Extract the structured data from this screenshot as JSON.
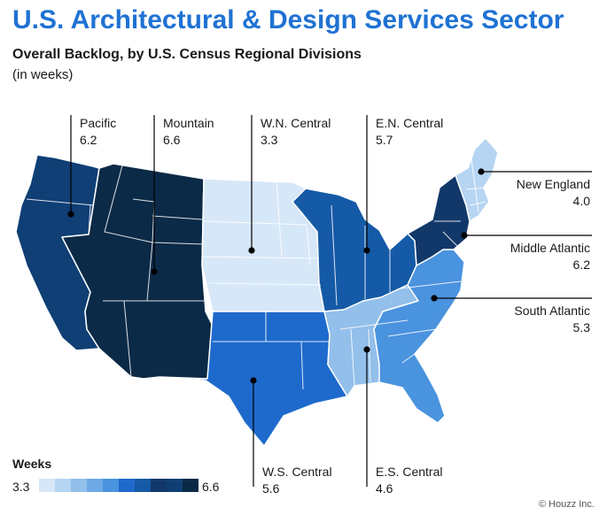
{
  "header": {
    "title": "U.S. Architectural & Design Services Sector",
    "subtitle": "Overall Backlog, by U.S. Census Regional Divisions",
    "units": "(in weeks)"
  },
  "regions": [
    {
      "id": "pacific",
      "name": "Pacific",
      "value": "6.2",
      "color": "#0f3f75"
    },
    {
      "id": "mountain",
      "name": "Mountain",
      "value": "6.6",
      "color": "#0b2a47"
    },
    {
      "id": "wn-central",
      "name": "W.N. Central",
      "value": "3.3",
      "color": "#d6e7f8"
    },
    {
      "id": "en-central",
      "name": "E.N. Central",
      "value": "5.7",
      "color": "#155aa6"
    },
    {
      "id": "new-england",
      "name": "New England",
      "value": "4.0",
      "color": "#b6d5f3"
    },
    {
      "id": "middle-atlantic",
      "name": "Middle Atlantic",
      "value": "6.2",
      "color": "#12386a"
    },
    {
      "id": "south-atlantic",
      "name": "South Atlantic",
      "value": "5.3",
      "color": "#4a93de"
    },
    {
      "id": "ws-central",
      "name": "W.S. Central",
      "value": "5.6",
      "color": "#1e6acc"
    },
    {
      "id": "es-central",
      "name": "E.S. Central",
      "value": "4.6",
      "color": "#93bfeb"
    }
  ],
  "legend": {
    "title": "Weeks",
    "min": "3.3",
    "max": "6.6",
    "colors": [
      "#d6e7f8",
      "#b6d5f3",
      "#93bfeb",
      "#6ea9e6",
      "#4a93de",
      "#1e6acc",
      "#155aa6",
      "#12386a",
      "#0f3f75",
      "#0b2a47"
    ]
  },
  "credit": "© Houzz Inc."
}
